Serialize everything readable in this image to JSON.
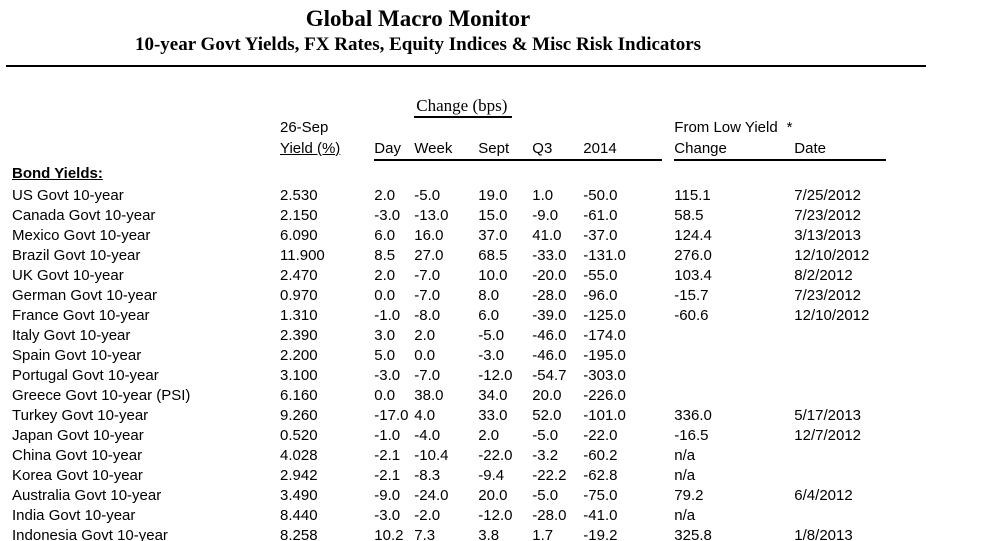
{
  "page": {
    "title": "Global Macro Monitor",
    "subtitle": "10-year Govt Yields, FX Rates, Equity Indices & Misc Risk Indicators"
  },
  "colors": {
    "text": "#000000",
    "background": "#ffffff",
    "rule": "#000000"
  },
  "table": {
    "change_group_header": "Change (bps)",
    "report_date": "26-Sep",
    "yield_header": "Yield (%)",
    "col_headers": {
      "day": "Day",
      "week": "Week",
      "sept": "Sept",
      "q3": "Q3",
      "y2014": "2014"
    },
    "from_low": {
      "header": "From Low Yield",
      "footnote_symbol": "*",
      "change": "Change",
      "date": "Date"
    },
    "section": "Bond Yields:",
    "rows": [
      {
        "label": "US Govt 10-year",
        "yield": "2.530",
        "day": "2.0",
        "week": "-5.0",
        "sept": "19.0",
        "q3": "1.0",
        "y2014": "-50.0",
        "from_low_change": "115.1",
        "from_low_date": "7/25/2012"
      },
      {
        "label": "Canada Govt 10-year",
        "yield": "2.150",
        "day": "-3.0",
        "week": "-13.0",
        "sept": "15.0",
        "q3": "-9.0",
        "y2014": "-61.0",
        "from_low_change": "58.5",
        "from_low_date": "7/23/2012"
      },
      {
        "label": "Mexico Govt 10-year",
        "yield": "6.090",
        "day": "6.0",
        "week": "16.0",
        "sept": "37.0",
        "q3": "41.0",
        "y2014": "-37.0",
        "from_low_change": "124.4",
        "from_low_date": "3/13/2013"
      },
      {
        "label": "Brazil Govt 10-year",
        "yield": "11.900",
        "day": "8.5",
        "week": "27.0",
        "sept": "68.5",
        "q3": "-33.0",
        "y2014": "-131.0",
        "from_low_change": "276.0",
        "from_low_date": "12/10/2012"
      },
      {
        "label": "UK Govt 10-year",
        "yield": "2.470",
        "day": "2.0",
        "week": "-7.0",
        "sept": "10.0",
        "q3": "-20.0",
        "y2014": "-55.0",
        "from_low_change": "103.4",
        "from_low_date": "8/2/2012"
      },
      {
        "label": "German Govt 10-year",
        "yield": "0.970",
        "day": "0.0",
        "week": "-7.0",
        "sept": "8.0",
        "q3": "-28.0",
        "y2014": "-96.0",
        "from_low_change": "-15.7",
        "from_low_date": "7/23/2012"
      },
      {
        "label": "France Govt 10-year",
        "yield": "1.310",
        "day": "-1.0",
        "week": "-8.0",
        "sept": "6.0",
        "q3": "-39.0",
        "y2014": "-125.0",
        "from_low_change": "-60.6",
        "from_low_date": "12/10/2012"
      },
      {
        "label": "Italy Govt 10-year",
        "yield": "2.390",
        "day": "3.0",
        "week": "2.0",
        "sept": "-5.0",
        "q3": "-46.0",
        "y2014": "-174.0",
        "from_low_change": "",
        "from_low_date": ""
      },
      {
        "label": "Spain Govt 10-year",
        "yield": "2.200",
        "day": "5.0",
        "week": "0.0",
        "sept": "-3.0",
        "q3": "-46.0",
        "y2014": "-195.0",
        "from_low_change": "",
        "from_low_date": ""
      },
      {
        "label": "Portugal Govt 10-year",
        "yield": "3.100",
        "day": "-3.0",
        "week": "-7.0",
        "sept": "-12.0",
        "q3": "-54.7",
        "y2014": "-303.0",
        "from_low_change": "",
        "from_low_date": ""
      },
      {
        "label": "Greece Govt 10-year (PSI)",
        "yield": "6.160",
        "day": "0.0",
        "week": "38.0",
        "sept": "34.0",
        "q3": "20.0",
        "y2014": "-226.0",
        "from_low_change": "",
        "from_low_date": ""
      },
      {
        "label": "Turkey Govt 10-year",
        "yield": "9.260",
        "day": "-17.0",
        "week": "4.0",
        "sept": "33.0",
        "q3": "52.0",
        "y2014": "-101.0",
        "from_low_change": "336.0",
        "from_low_date": "5/17/2013"
      },
      {
        "label": "Japan Govt 10-year",
        "yield": "0.520",
        "day": "-1.0",
        "week": "-4.0",
        "sept": "2.0",
        "q3": "-5.0",
        "y2014": "-22.0",
        "from_low_change": "-16.5",
        "from_low_date": "12/7/2012"
      },
      {
        "label": "China Govt 10-year",
        "yield": "4.028",
        "day": "-2.1",
        "week": "-10.4",
        "sept": "-22.0",
        "q3": "-3.2",
        "y2014": "-60.2",
        "from_low_change": "n/a",
        "from_low_date": ""
      },
      {
        "label": "Korea Govt 10-year",
        "yield": "2.942",
        "day": "-2.1",
        "week": "-8.3",
        "sept": "-9.4",
        "q3": "-22.2",
        "y2014": "-62.8",
        "from_low_change": "n/a",
        "from_low_date": ""
      },
      {
        "label": "Australia Govt 10-year",
        "yield": "3.490",
        "day": "-9.0",
        "week": "-24.0",
        "sept": "20.0",
        "q3": "-5.0",
        "y2014": "-75.0",
        "from_low_change": "79.2",
        "from_low_date": "6/4/2012"
      },
      {
        "label": "India Govt 10-year",
        "yield": "8.440",
        "day": "-3.0",
        "week": "-2.0",
        "sept": "-12.0",
        "q3": "-28.0",
        "y2014": "-41.0",
        "from_low_change": "n/a",
        "from_low_date": ""
      },
      {
        "label": "Indonesia Govt 10-year",
        "yield": "8.258",
        "day": "10.2",
        "week": "7.3",
        "sept": "3.8",
        "q3": "1.7",
        "y2014": "-19.2",
        "from_low_change": "325.8",
        "from_low_date": "1/8/2013"
      }
    ]
  }
}
